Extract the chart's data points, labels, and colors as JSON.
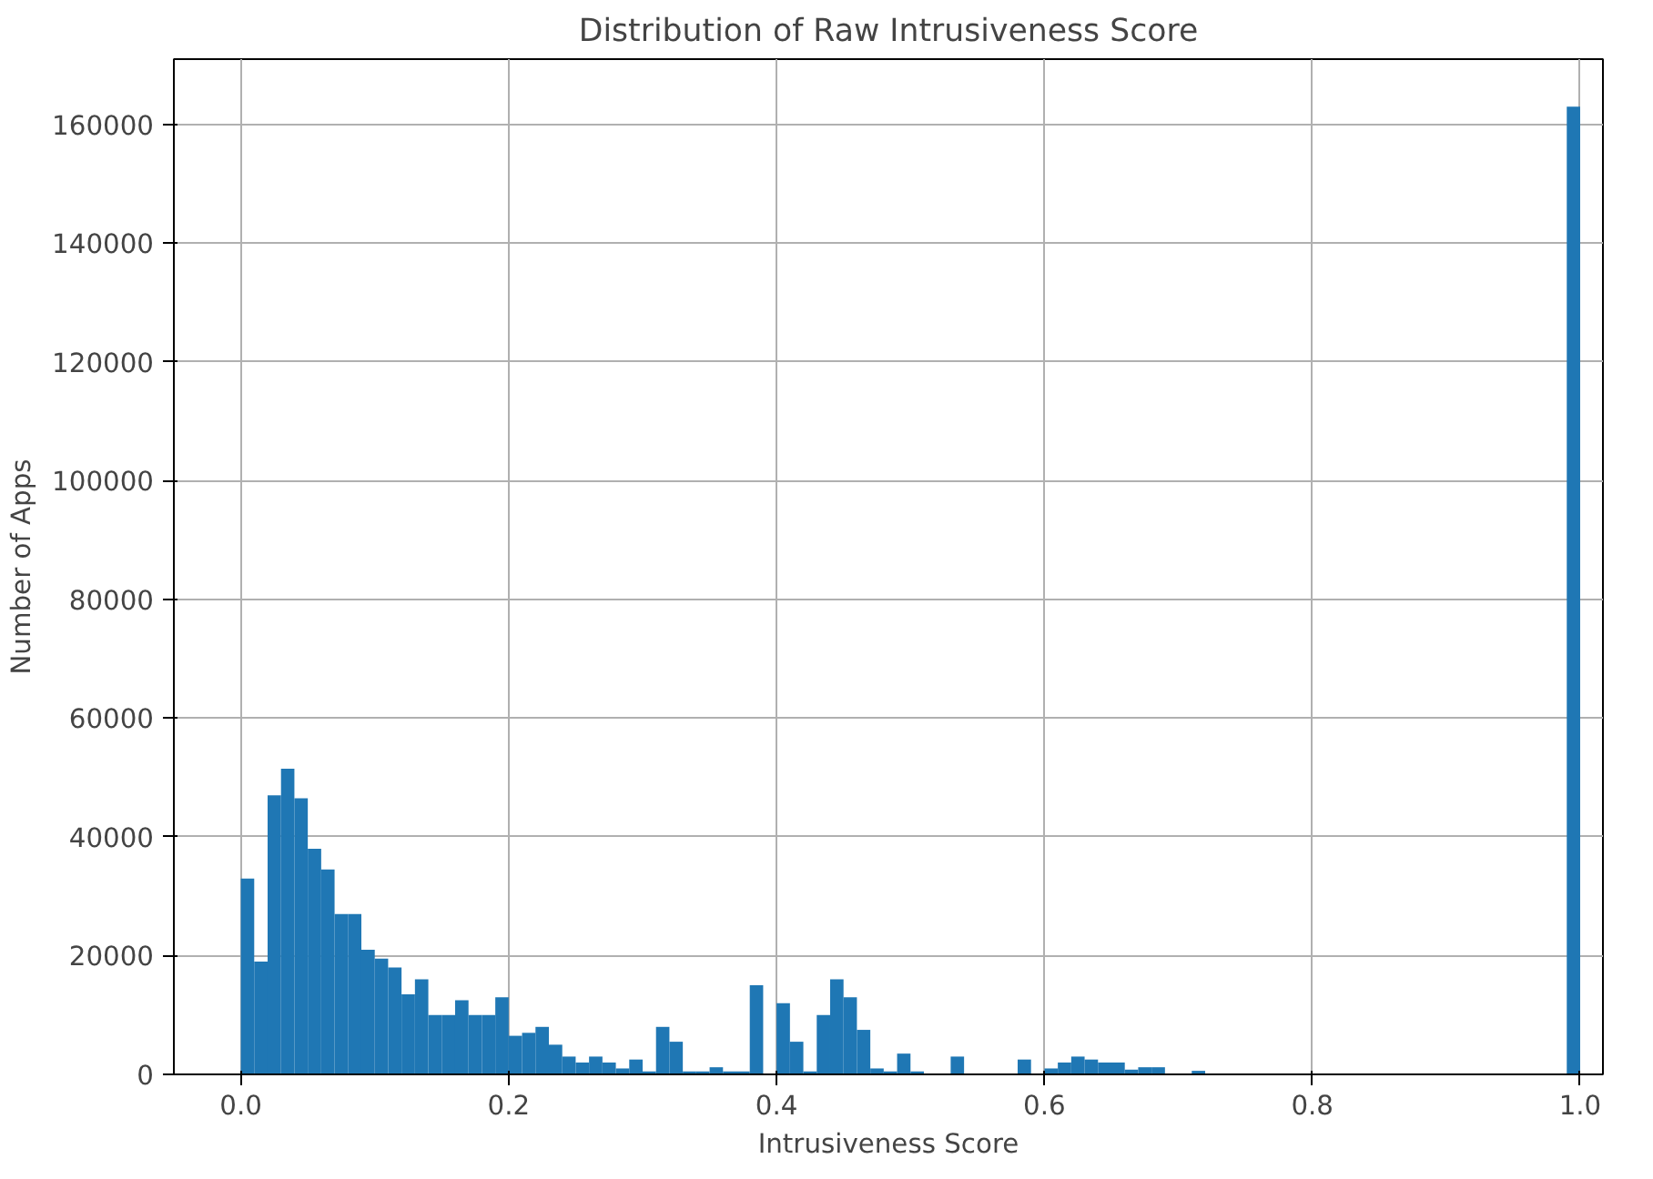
{
  "chart_data": {
    "type": "histogram",
    "title": "Distribution of Raw Intrusiveness Score",
    "xlabel": "Intrusiveness Score",
    "ylabel": "Number of Apps",
    "color": "#1f77b4",
    "bins": [
      0,
      0.01,
      0.02,
      0.03,
      0.04,
      0.05,
      0.06,
      0.07,
      0.08,
      0.09,
      0.1,
      0.11,
      0.12,
      0.13,
      0.14,
      0.15,
      0.16,
      0.17,
      0.18,
      0.19,
      0.2,
      0.21,
      0.22,
      0.23,
      0.24,
      0.25,
      0.26,
      0.27,
      0.28,
      0.29,
      0.3,
      0.31,
      0.32,
      0.33,
      0.34,
      0.35,
      0.36,
      0.37,
      0.38,
      0.39,
      0.4,
      0.41,
      0.42,
      0.43,
      0.44,
      0.45,
      0.46,
      0.47,
      0.48,
      0.49,
      0.5,
      0.51,
      0.52,
      0.53,
      0.54,
      0.55,
      0.56,
      0.57,
      0.58,
      0.59,
      0.6,
      0.61,
      0.62,
      0.63,
      0.64,
      0.65,
      0.66,
      0.67,
      0.68,
      0.69,
      0.7,
      0.71,
      0.72,
      0.73,
      0.74,
      0.75,
      0.76,
      0.77,
      0.78,
      0.79,
      0.8,
      0.81,
      0.82,
      0.83,
      0.84,
      0.85,
      0.86,
      0.87,
      0.88,
      0.89,
      0.9,
      0.91,
      0.92,
      0.93,
      0.94,
      0.95,
      0.96,
      0.97,
      0.98,
      0.99,
      1
    ],
    "values": [
      33000,
      19000,
      47000,
      51500,
      46500,
      38000,
      34500,
      27000,
      27000,
      21000,
      19500,
      18000,
      13500,
      16000,
      10000,
      10000,
      12500,
      10000,
      10000,
      13000,
      6500,
      7000,
      8000,
      5000,
      3000,
      2000,
      3000,
      2000,
      1000,
      2500,
      500,
      8000,
      5500,
      500,
      500,
      1200,
      500,
      500,
      15000,
      0,
      12000,
      5500,
      500,
      10000,
      16000,
      13000,
      7500,
      1000,
      500,
      3500,
      500,
      0,
      0,
      3000,
      0,
      0,
      0,
      0,
      2500,
      0,
      1000,
      2000,
      3000,
      2500,
      2000,
      2000,
      800,
      1200,
      1200,
      0,
      0,
      600,
      0,
      0,
      0,
      0,
      0,
      0,
      0,
      0,
      0,
      0,
      0,
      0,
      0,
      0,
      0,
      0,
      0,
      0,
      0,
      0,
      0,
      0,
      0,
      0,
      0,
      0,
      0,
      163000
    ],
    "xlim": [
      -0.05,
      1.017
    ],
    "ylim": [
      0,
      171000
    ],
    "xticks": [
      {
        "value": 0,
        "label": "0.0"
      },
      {
        "value": 0.2,
        "label": "0.2"
      },
      {
        "value": 0.4,
        "label": "0.4"
      },
      {
        "value": 0.6,
        "label": "0.6"
      },
      {
        "value": 0.8,
        "label": "0.8"
      },
      {
        "value": 1,
        "label": "1.0"
      }
    ],
    "yticks": [
      0,
      20000,
      40000,
      60000,
      80000,
      100000,
      120000,
      140000,
      160000
    ],
    "grid": true
  }
}
